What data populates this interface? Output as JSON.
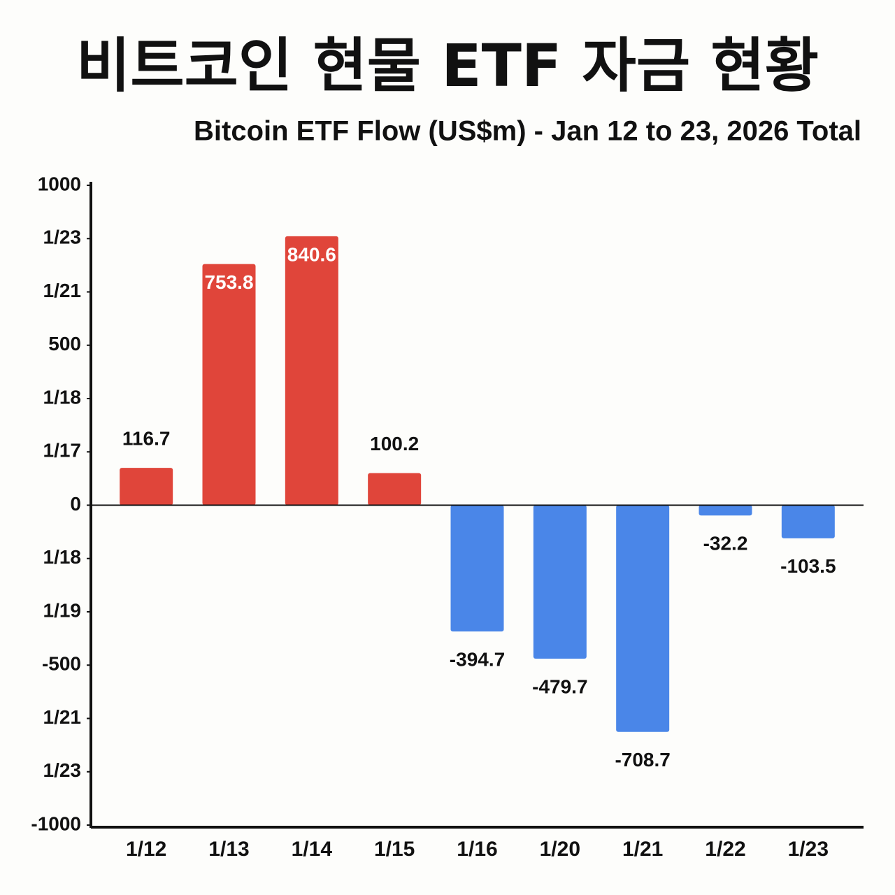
{
  "chart_data": {
    "type": "bar",
    "title": "비트코인 현물 ETF 자금 현황",
    "subtitle": "Bitcoin ETF Flow (US$m) - Jan 12 to 23, 2026 Total",
    "categories": [
      "1/12",
      "1/13",
      "1/14",
      "1/15",
      "1/16",
      "1/20",
      "1/21",
      "1/22",
      "1/23"
    ],
    "values": [
      116.7,
      753.8,
      840.6,
      100.2,
      -394.7,
      -479.7,
      -708.7,
      -32.2,
      -103.5
    ],
    "positive_color": "#e0453a",
    "negative_color": "#4a86e8",
    "ylim": [
      -1000,
      1000
    ],
    "yticks": [
      1000,
      {
        "value": 833.33,
        "label": "1/23"
      },
      {
        "value": 666.67,
        "label": "1/21"
      },
      500,
      {
        "value": 333.33,
        "label": "1/18"
      },
      {
        "value": 166.67,
        "label": "1/17"
      },
      0,
      {
        "value": -166.67,
        "label": "1/18"
      },
      {
        "value": -333.33,
        "label": "1/19"
      },
      -500,
      {
        "value": -666.67,
        "label": "1/21"
      },
      {
        "value": -833.33,
        "label": "1/23"
      },
      -1000
    ],
    "grid": false
  }
}
